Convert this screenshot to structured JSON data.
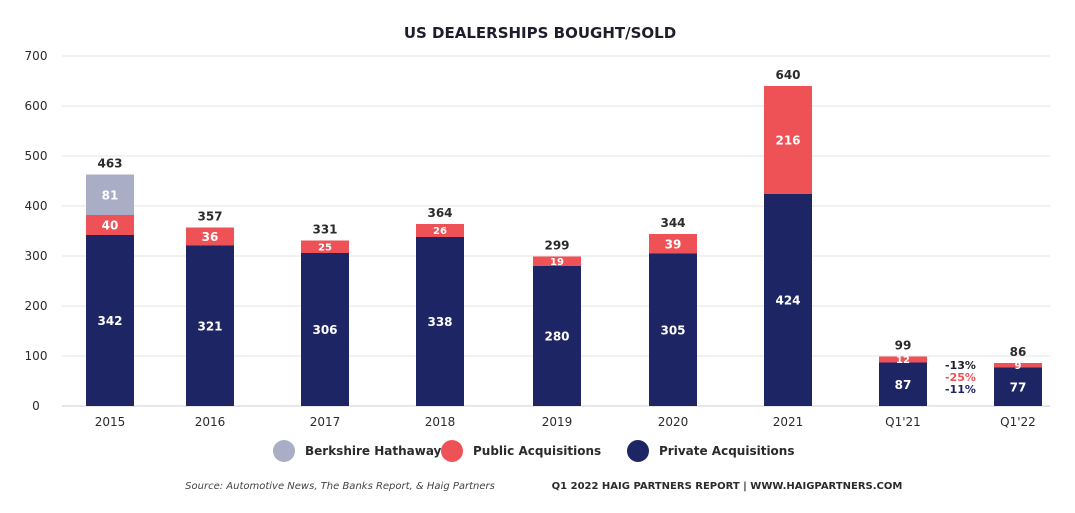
{
  "chart_data": {
    "type": "bar",
    "stacked": true,
    "title": "US DEALERSHIPS BOUGHT/SOLD",
    "categories": [
      "2015",
      "2016",
      "2017",
      "2018",
      "2019",
      "2020",
      "2021",
      "Q1'21",
      "Q1'22"
    ],
    "series": [
      {
        "name": "Private Acquisitions",
        "color": "#1e2565",
        "values": [
          342,
          321,
          306,
          338,
          280,
          305,
          424,
          87,
          77
        ]
      },
      {
        "name": "Public Acquisitions",
        "color": "#ee5257",
        "values": [
          40,
          36,
          25,
          26,
          19,
          39,
          216,
          12,
          9
        ]
      },
      {
        "name": "Berkshire Hathaway",
        "color": "#a9aec6",
        "values": [
          81,
          0,
          0,
          0,
          0,
          0,
          0,
          0,
          0
        ]
      }
    ],
    "totals": [
      463,
      357,
      331,
      364,
      299,
      344,
      640,
      99,
      86
    ],
    "ylim": [
      0,
      700
    ],
    "yticks": [
      0,
      100,
      200,
      300,
      400,
      500,
      600,
      700
    ],
    "grid": true,
    "legend_order": [
      "Berkshire Hathaway",
      "Public Acquisitions",
      "Private Acquisitions"
    ],
    "legend_position": "bottom",
    "annotations": [
      {
        "text": "-13%",
        "color": "#1d1d2b"
      },
      {
        "text": "-25%",
        "color": "#ee5257"
      },
      {
        "text": "-11%",
        "color": "#1e2565"
      }
    ]
  },
  "footer": {
    "source": "Source: Automotive News, The Banks Report, & Haig Partners",
    "report": "Q1 2022 HAIG PARTNERS REPORT | WWW.HAIGPARTNERS.COM"
  }
}
